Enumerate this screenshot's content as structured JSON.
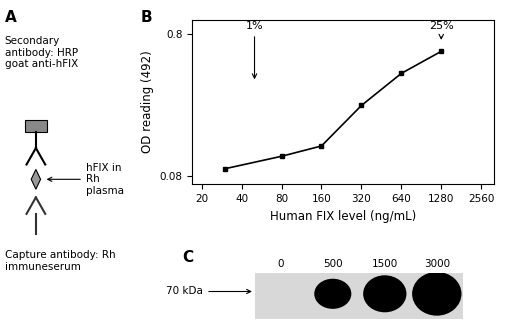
{
  "panel_a": {
    "label": "A",
    "secondary_text": "Secondary\nantibody: HRP\ngoat anti-hFIX",
    "antigen_text": "hFIX in\nRh\nplasma",
    "capture_text": "Capture antibody: Rh\nimmuneserum"
  },
  "chart_data": {
    "type": "line",
    "label": "B",
    "x": [
      30,
      80,
      160,
      320,
      640,
      1280
    ],
    "values": [
      0.09,
      0.11,
      0.13,
      0.25,
      0.42,
      0.6
    ],
    "color": "#000000",
    "marker": "s",
    "line_style": "solid",
    "x_label": "Human FIX level (ng/mL)",
    "y_label": "OD reading (492)",
    "log": true,
    "xlim": [
      17,
      3200
    ],
    "xticks": [
      20,
      40,
      80,
      160,
      320,
      640,
      1280,
      2560
    ],
    "ylim": [
      0.07,
      1.0
    ],
    "yticks": [
      0.08,
      0.8
    ],
    "annotations": [
      {
        "text": "1%",
        "x": 50
      },
      {
        "text": "25%",
        "x": 1280
      }
    ]
  },
  "panel_c": {
    "label": "C",
    "lanes": [
      0,
      500,
      1500,
      3000
    ],
    "marker_label": "70 kDa"
  }
}
